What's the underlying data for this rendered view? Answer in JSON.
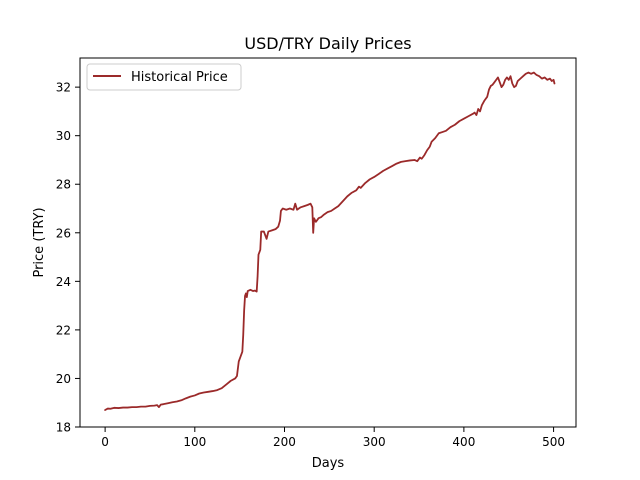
{
  "chart_data": {
    "type": "line",
    "title": "USD/TRY Daily Prices",
    "xlabel": "Days",
    "ylabel": "Price (TRY)",
    "xlim": [
      -28,
      525
    ],
    "ylim": [
      18,
      33.2
    ],
    "xticks": [
      0,
      100,
      200,
      300,
      400,
      500
    ],
    "yticks": [
      18,
      20,
      22,
      24,
      26,
      28,
      30,
      32
    ],
    "grid": false,
    "legend": "top-left",
    "series": [
      {
        "name": "Historical Price",
        "color": "#9b2a2a",
        "points": [
          [
            0,
            18.7
          ],
          [
            3,
            18.76
          ],
          [
            6,
            18.75
          ],
          [
            10,
            18.79
          ],
          [
            15,
            18.78
          ],
          [
            20,
            18.8
          ],
          [
            25,
            18.8
          ],
          [
            30,
            18.82
          ],
          [
            35,
            18.82
          ],
          [
            40,
            18.84
          ],
          [
            45,
            18.84
          ],
          [
            50,
            18.87
          ],
          [
            55,
            18.88
          ],
          [
            58,
            18.9
          ],
          [
            60,
            18.82
          ],
          [
            62,
            18.92
          ],
          [
            65,
            18.94
          ],
          [
            70,
            18.98
          ],
          [
            75,
            19.02
          ],
          [
            80,
            19.05
          ],
          [
            85,
            19.1
          ],
          [
            90,
            19.18
          ],
          [
            95,
            19.25
          ],
          [
            100,
            19.3
          ],
          [
            105,
            19.38
          ],
          [
            110,
            19.42
          ],
          [
            115,
            19.45
          ],
          [
            120,
            19.48
          ],
          [
            125,
            19.52
          ],
          [
            130,
            19.6
          ],
          [
            135,
            19.75
          ],
          [
            140,
            19.9
          ],
          [
            145,
            20.0
          ],
          [
            147,
            20.1
          ],
          [
            149,
            20.7
          ],
          [
            151,
            20.9
          ],
          [
            153,
            21.1
          ],
          [
            154,
            21.8
          ],
          [
            155,
            22.8
          ],
          [
            156,
            23.4
          ],
          [
            157,
            23.5
          ],
          [
            158,
            23.35
          ],
          [
            159,
            23.6
          ],
          [
            162,
            23.65
          ],
          [
            165,
            23.6
          ],
          [
            167,
            23.62
          ],
          [
            169,
            23.58
          ],
          [
            170,
            24.2
          ],
          [
            171,
            25.1
          ],
          [
            173,
            25.3
          ],
          [
            174,
            26.05
          ],
          [
            177,
            26.05
          ],
          [
            180,
            25.75
          ],
          [
            182,
            26.05
          ],
          [
            186,
            26.1
          ],
          [
            190,
            26.15
          ],
          [
            193,
            26.25
          ],
          [
            195,
            26.5
          ],
          [
            196,
            26.9
          ],
          [
            198,
            27.0
          ],
          [
            202,
            26.95
          ],
          [
            206,
            27.0
          ],
          [
            210,
            26.95
          ],
          [
            212,
            27.2
          ],
          [
            214,
            26.95
          ],
          [
            218,
            27.05
          ],
          [
            222,
            27.1
          ],
          [
            226,
            27.15
          ],
          [
            229,
            27.2
          ],
          [
            231,
            27.05
          ],
          [
            232,
            26.0
          ],
          [
            233,
            26.6
          ],
          [
            235,
            26.45
          ],
          [
            238,
            26.6
          ],
          [
            241,
            26.65
          ],
          [
            244,
            26.75
          ],
          [
            248,
            26.85
          ],
          [
            252,
            26.9
          ],
          [
            256,
            27.0
          ],
          [
            260,
            27.1
          ],
          [
            265,
            27.3
          ],
          [
            270,
            27.5
          ],
          [
            275,
            27.65
          ],
          [
            280,
            27.75
          ],
          [
            283,
            27.9
          ],
          [
            285,
            27.85
          ],
          [
            290,
            28.05
          ],
          [
            295,
            28.2
          ],
          [
            300,
            28.3
          ],
          [
            305,
            28.42
          ],
          [
            310,
            28.55
          ],
          [
            315,
            28.65
          ],
          [
            320,
            28.75
          ],
          [
            325,
            28.85
          ],
          [
            330,
            28.92
          ],
          [
            335,
            28.95
          ],
          [
            340,
            28.98
          ],
          [
            345,
            29.0
          ],
          [
            348,
            28.95
          ],
          [
            351,
            29.1
          ],
          [
            353,
            29.05
          ],
          [
            356,
            29.2
          ],
          [
            359,
            29.4
          ],
          [
            362,
            29.55
          ],
          [
            364,
            29.75
          ],
          [
            368,
            29.9
          ],
          [
            372,
            30.1
          ],
          [
            376,
            30.15
          ],
          [
            380,
            30.2
          ],
          [
            385,
            30.35
          ],
          [
            390,
            30.45
          ],
          [
            395,
            30.6
          ],
          [
            400,
            30.7
          ],
          [
            405,
            30.8
          ],
          [
            410,
            30.9
          ],
          [
            412,
            30.95
          ],
          [
            414,
            30.85
          ],
          [
            416,
            31.1
          ],
          [
            418,
            31.0
          ],
          [
            420,
            31.25
          ],
          [
            423,
            31.45
          ],
          [
            426,
            31.6
          ],
          [
            428,
            31.9
          ],
          [
            430,
            32.05
          ],
          [
            432,
            32.1
          ],
          [
            434,
            32.2
          ],
          [
            436,
            32.3
          ],
          [
            438,
            32.4
          ],
          [
            440,
            32.2
          ],
          [
            442,
            32.0
          ],
          [
            444,
            32.1
          ],
          [
            446,
            32.3
          ],
          [
            448,
            32.4
          ],
          [
            450,
            32.3
          ],
          [
            452,
            32.45
          ],
          [
            454,
            32.15
          ],
          [
            456,
            32.0
          ],
          [
            458,
            32.05
          ],
          [
            460,
            32.25
          ],
          [
            463,
            32.35
          ],
          [
            466,
            32.45
          ],
          [
            469,
            32.55
          ],
          [
            472,
            32.6
          ],
          [
            475,
            32.55
          ],
          [
            478,
            32.6
          ],
          [
            481,
            32.5
          ],
          [
            484,
            32.45
          ],
          [
            487,
            32.35
          ],
          [
            490,
            32.4
          ],
          [
            493,
            32.3
          ],
          [
            496,
            32.35
          ],
          [
            498,
            32.25
          ],
          [
            500,
            32.3
          ],
          [
            501,
            32.15
          ]
        ]
      }
    ]
  }
}
